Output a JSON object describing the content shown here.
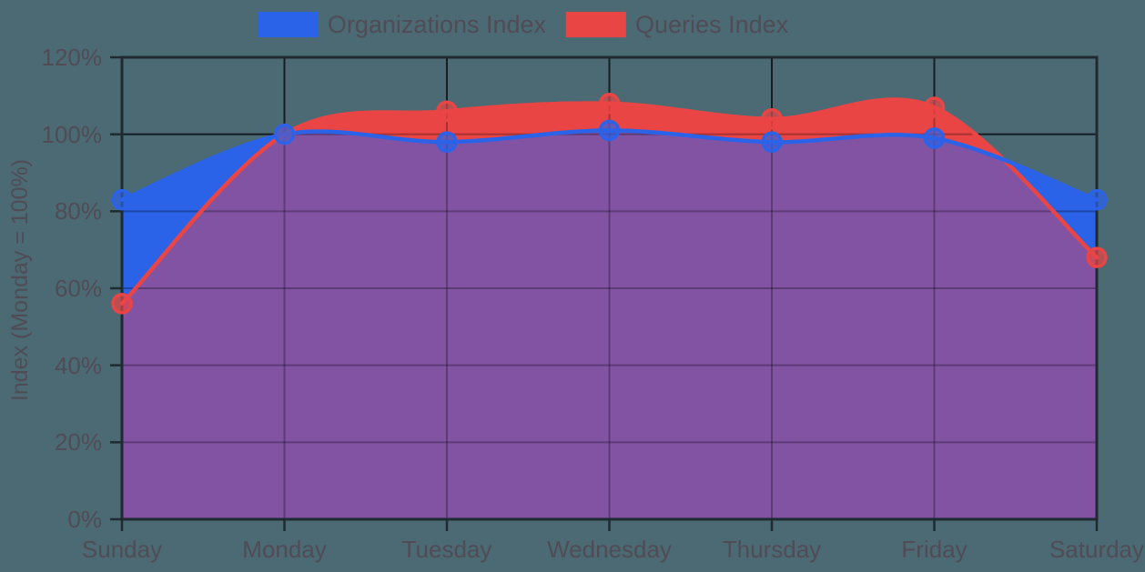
{
  "colors": {
    "background": "#4C6A74",
    "grid": "#1F2A31",
    "text": "#4F4C55",
    "overlap_fill": "#8253A2"
  },
  "legend": {
    "position": "top"
  },
  "chart_data": {
    "type": "area",
    "smooth": true,
    "categories": [
      "Sunday",
      "Monday",
      "Tuesday",
      "Wednesday",
      "Thursday",
      "Friday",
      "Saturday"
    ],
    "series": [
      {
        "name": "Organizations Index",
        "color": "#2B63E8",
        "values": [
          83,
          100,
          98,
          101,
          98,
          99,
          83
        ]
      },
      {
        "name": "Queries Index",
        "color": "#E94545",
        "values": [
          56,
          100,
          106,
          108,
          104,
          107,
          68
        ]
      }
    ],
    "title": "",
    "xlabel": "",
    "ylabel": "Index (Monday = 100%)",
    "y_ticks": [
      "0%",
      "20%",
      "40%",
      "60%",
      "80%",
      "100%",
      "120%"
    ],
    "y_tick_values": [
      0,
      20,
      40,
      60,
      80,
      100,
      120
    ],
    "ylim": [
      0,
      120
    ],
    "grid": true,
    "legend_position": "top",
    "marker": "circle"
  }
}
